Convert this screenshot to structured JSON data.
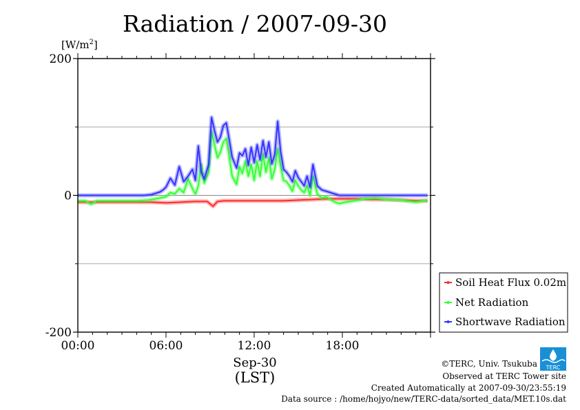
{
  "chart_data": {
    "type": "line",
    "title": "Radiation / 2007-09-30",
    "ylabel_unit": "[W/m",
    "ylabel_sup": "2",
    "ylabel_close": "]",
    "ylim": [
      -200,
      200
    ],
    "xlim_hours": [
      0,
      24
    ],
    "y_ticks": [
      {
        "value": 200,
        "label": "200"
      },
      {
        "value": 0,
        "label": "0"
      },
      {
        "value": -200,
        "label": "-200"
      }
    ],
    "y_grid": [
      100,
      -100
    ],
    "x_ticks": [
      {
        "value": 0,
        "label": "00:00"
      },
      {
        "value": 6,
        "label": "06:00"
      },
      {
        "value": 12,
        "label": "12:00"
      },
      {
        "value": 18,
        "label": "18:00"
      }
    ],
    "xlabel_date": "Sep-30",
    "xlabel_zone": "(LST)",
    "legend_position": "right",
    "series": [
      {
        "name": "Soil Heat Flux 0.02m",
        "color": "#ff2a2a",
        "x": [
          0,
          1,
          2,
          3,
          4,
          5,
          6,
          7,
          8,
          8.8,
          9.2,
          9.5,
          10,
          11,
          12,
          13,
          14,
          15,
          16,
          17,
          18,
          19,
          20,
          21,
          22,
          23,
          23.8
        ],
        "y": [
          -10,
          -10,
          -10,
          -10,
          -10,
          -10,
          -11,
          -10,
          -9,
          -9,
          -16,
          -9,
          -8,
          -8,
          -8,
          -8,
          -8,
          -7,
          -6,
          -5,
          -5,
          -5,
          -6,
          -6,
          -7,
          -8,
          -8
        ]
      },
      {
        "name": "Net Radiation",
        "color": "#33ff33",
        "x": [
          0,
          0.5,
          0.9,
          1.3,
          2,
          3,
          4,
          4.8,
          5.3,
          5.8,
          6.0,
          6.3,
          6.6,
          6.9,
          7.2,
          7.5,
          7.8,
          8.0,
          8.2,
          8.4,
          8.6,
          8.9,
          9.1,
          9.3,
          9.5,
          9.7,
          9.9,
          10.1,
          10.3,
          10.5,
          10.8,
          11.0,
          11.2,
          11.4,
          11.6,
          11.8,
          12.0,
          12.2,
          12.4,
          12.6,
          12.8,
          13.0,
          13.2,
          13.4,
          13.6,
          13.8,
          14.0,
          14.2,
          14.4,
          14.6,
          14.8,
          15.0,
          15.2,
          15.4,
          15.6,
          15.8,
          16.0,
          16.3,
          16.6,
          16.9,
          17.2,
          17.5,
          17.8,
          18.2,
          18.8,
          19.5,
          20.2,
          21,
          22,
          23,
          23.8
        ],
        "y": [
          -8,
          -8,
          -13,
          -8,
          -8,
          -8,
          -8,
          -7,
          -5,
          -3,
          -2,
          4,
          2,
          10,
          4,
          24,
          10,
          2,
          14,
          45,
          18,
          34,
          93,
          74,
          55,
          63,
          78,
          83,
          58,
          28,
          16,
          42,
          32,
          50,
          28,
          45,
          22,
          50,
          28,
          60,
          34,
          55,
          24,
          38,
          68,
          42,
          22,
          20,
          14,
          6,
          22,
          14,
          8,
          4,
          14,
          0,
          28,
          2,
          -4,
          -2,
          -6,
          -10,
          -12,
          -10,
          -8,
          -5,
          -4,
          -6,
          -7,
          -10,
          -7
        ]
      },
      {
        "name": "Shortwave Radiation",
        "color": "#3333ff",
        "x": [
          0,
          1,
          2,
          3,
          4,
          4.5,
          5.0,
          5.3,
          5.6,
          5.8,
          6.0,
          6.3,
          6.6,
          6.9,
          7.2,
          7.5,
          7.8,
          8.0,
          8.2,
          8.4,
          8.6,
          8.9,
          9.1,
          9.3,
          9.5,
          9.7,
          9.9,
          10.1,
          10.3,
          10.5,
          10.8,
          11.0,
          11.2,
          11.4,
          11.6,
          11.8,
          12.0,
          12.2,
          12.4,
          12.6,
          12.8,
          13.0,
          13.2,
          13.4,
          13.6,
          13.8,
          14.0,
          14.2,
          14.4,
          14.6,
          14.8,
          15.0,
          15.2,
          15.4,
          15.6,
          15.8,
          16.0,
          16.3,
          16.6,
          16.9,
          17.2,
          17.5,
          17.8,
          18.2,
          19,
          20,
          21,
          22,
          23,
          23.8
        ],
        "y": [
          0,
          0,
          0,
          0,
          0,
          0,
          1,
          3,
          5,
          8,
          12,
          25,
          15,
          42,
          20,
          28,
          38,
          22,
          72,
          34,
          24,
          45,
          114,
          95,
          78,
          85,
          102,
          106,
          82,
          56,
          40,
          62,
          58,
          68,
          44,
          70,
          48,
          74,
          52,
          80,
          56,
          78,
          46,
          60,
          108,
          64,
          38,
          34,
          28,
          20,
          36,
          26,
          20,
          14,
          28,
          12,
          45,
          14,
          8,
          6,
          4,
          2,
          0,
          0,
          0,
          0,
          0,
          0,
          0,
          0
        ]
      }
    ]
  },
  "credits": {
    "copyright": "©TERC, Univ. Tsukuba",
    "observed": "Observed at TERC Tower site",
    "created": "Created Automatically at 2007-09-30/23:55:19",
    "source": "Data source : /home/hojyo/new/TERC-data/sorted_data/MET.10s.dat",
    "logo_text": "TERC"
  }
}
